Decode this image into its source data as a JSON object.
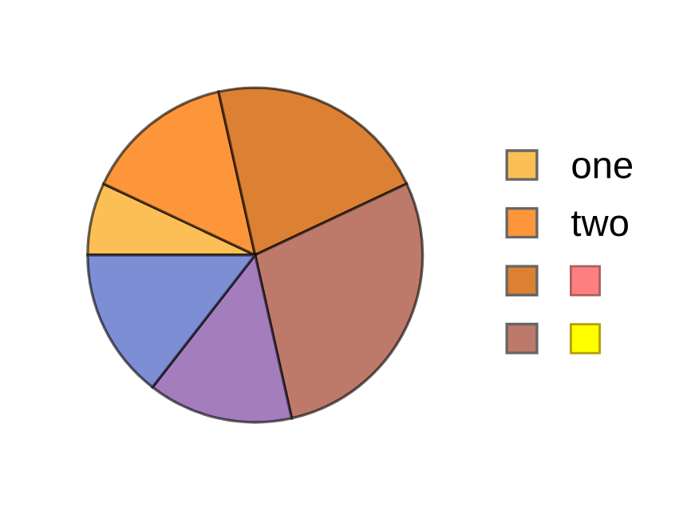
{
  "chart_data": {
    "type": "pie",
    "categories": [
      "one",
      "two",
      null,
      null,
      null,
      null
    ],
    "values": [
      7,
      14.5,
      21.5,
      28.5,
      14,
      14.5
    ],
    "colors": [
      "#fbbf55",
      "#fd963a",
      "#dc8034",
      "#bd7a6a",
      "#a47dbd",
      "#7e8ed5"
    ],
    "legend": "right"
  }
}
